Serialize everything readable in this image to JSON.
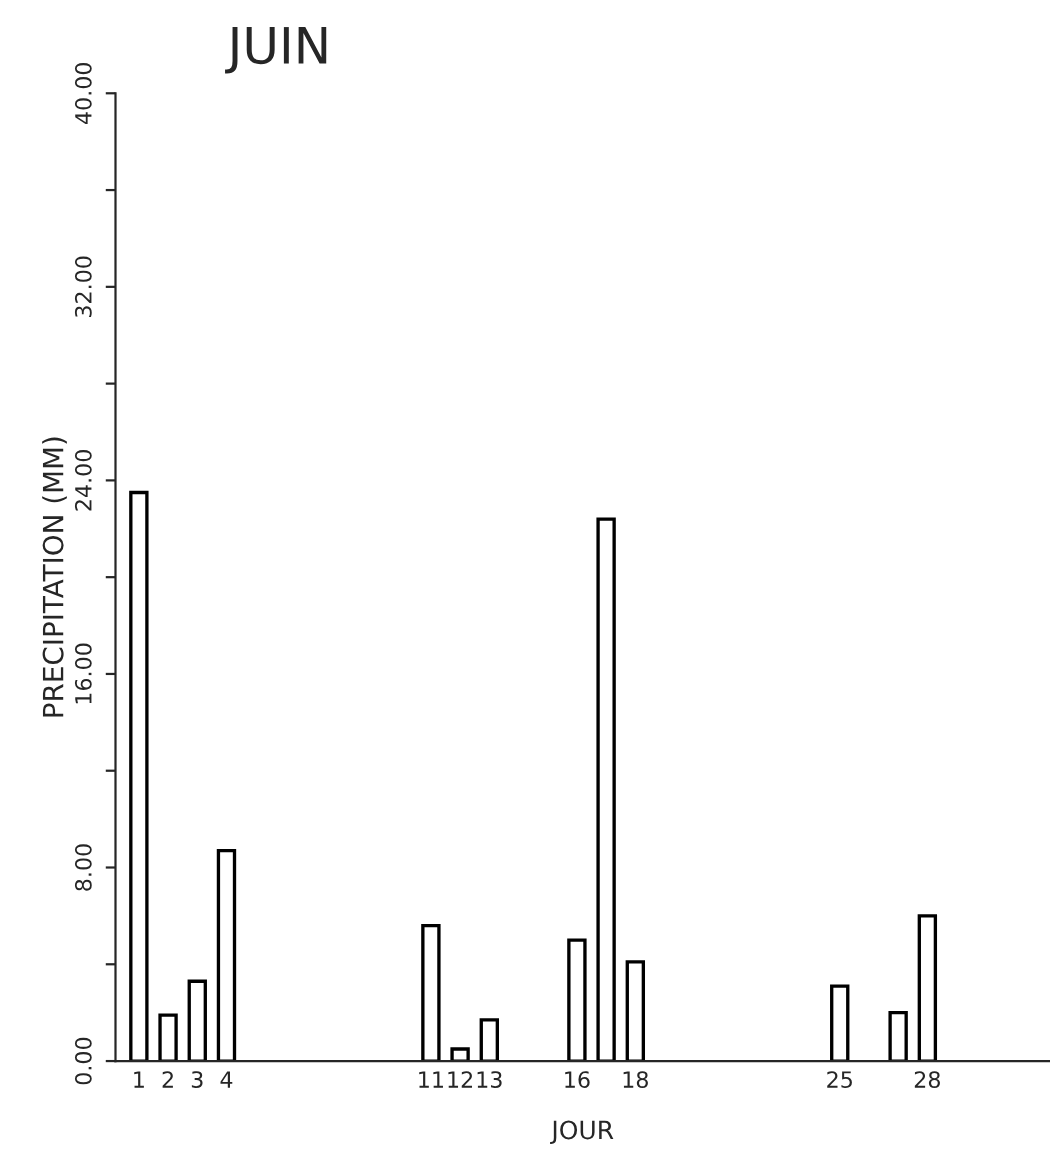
{
  "chart_data": {
    "type": "bar",
    "title": "JUIN",
    "xlabel": "JOUR",
    "ylabel": "PRECIPITATION (MM)",
    "categories": [
      "1",
      "2",
      "3",
      "4",
      null,
      null,
      null,
      null,
      null,
      null,
      "11",
      "12",
      "13",
      null,
      null,
      "16",
      null,
      "18",
      null,
      null,
      null,
      null,
      null,
      null,
      "25",
      null,
      null,
      "28",
      null,
      null
    ],
    "values": [
      23.5,
      1.9,
      3.3,
      8.7,
      null,
      null,
      null,
      null,
      null,
      null,
      5.6,
      0.5,
      1.7,
      null,
      null,
      5.0,
      22.4,
      4.1,
      null,
      null,
      null,
      null,
      null,
      null,
      3.1,
      null,
      2.0,
      6.0,
      null,
      null
    ],
    "color": "#ffffff",
    "ylim": [
      0,
      40
    ],
    "yticks": [
      {
        "value": 0,
        "label": "0.00"
      },
      {
        "value": 4,
        "label": null
      },
      {
        "value": 8,
        "label": "8.00"
      },
      {
        "value": 12,
        "label": null
      },
      {
        "value": 16,
        "label": "16.00"
      },
      {
        "value": 20,
        "label": null
      },
      {
        "value": 24,
        "label": "24.00"
      },
      {
        "value": 28,
        "label": null
      },
      {
        "value": 32,
        "label": "32.00"
      },
      {
        "value": 36,
        "label": null
      },
      {
        "value": 40,
        "label": "40.00"
      }
    ],
    "grid": false,
    "legend": false
  }
}
